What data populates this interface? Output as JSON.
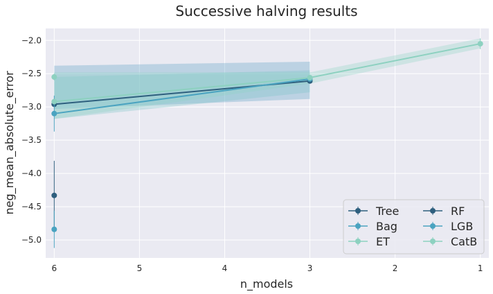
{
  "chart_data": {
    "type": "line",
    "title": "Successive halving results",
    "xlabel": "n_models",
    "ylabel": "neg_mean_absolute_error",
    "x_ticks": [
      6,
      5,
      4,
      3,
      2,
      1
    ],
    "x_tick_labels": [
      "6",
      "5",
      "4",
      "3",
      "2",
      "1"
    ],
    "x_reversed": true,
    "xlim": [
      6.1,
      0.9
    ],
    "y_ticks": [
      -5.0,
      -4.5,
      -4.0,
      -3.5,
      -3.0,
      -2.5,
      -2.0
    ],
    "y_tick_labels": [
      "−5.0",
      "−4.5",
      "−4.0",
      "−3.5",
      "−3.0",
      "−2.5",
      "−2.0"
    ],
    "ylim": [
      -5.27,
      -1.82
    ],
    "grid": true,
    "legend_position": "lower-right",
    "legend_columns": 2,
    "bands": [
      {
        "color": "#5a9fc5",
        "x": [
          6,
          3
        ],
        "upper": [
          -2.38,
          -2.32
        ],
        "lower": [
          -3.03,
          -2.88
        ]
      },
      {
        "color": "#7dc4c6",
        "x": [
          6,
          3
        ],
        "upper": [
          -2.55,
          -2.45
        ],
        "lower": [
          -3.18,
          -2.78
        ]
      },
      {
        "color": "#8fd3c4",
        "x": [
          6,
          3,
          1
        ],
        "upper": [
          -2.48,
          -2.48,
          -1.97
        ],
        "lower": [
          -3.18,
          -2.65,
          -2.12
        ]
      }
    ],
    "series": [
      {
        "name": "Tree",
        "color": "#2e5f7e",
        "x": [
          6
        ],
        "y": [
          -4.33
        ],
        "err": [
          0.52
        ]
      },
      {
        "name": "Bag",
        "color": "#4aa3c0",
        "x": [
          6
        ],
        "y": [
          -4.84
        ],
        "err": [
          0.28
        ]
      },
      {
        "name": "ET",
        "color": "#8dd1c0",
        "x": [
          6
        ],
        "y": [
          -2.55
        ],
        "err": [
          0.05
        ]
      },
      {
        "name": "RF",
        "color": "#2e5f7e",
        "x": [
          6,
          3
        ],
        "y": [
          -2.96,
          -2.61
        ],
        "err": [
          0.03,
          0.03
        ]
      },
      {
        "name": "LGB",
        "color": "#4aa3c0",
        "x": [
          6,
          3
        ],
        "y": [
          -3.1,
          -2.58
        ],
        "err": [
          0.27,
          0.03
        ]
      },
      {
        "name": "CatB",
        "color": "#8dd1c0",
        "x": [
          6,
          3,
          1
        ],
        "y": [
          -2.92,
          -2.56,
          -2.05
        ],
        "err": [
          0.04,
          0.03,
          0.08
        ]
      }
    ],
    "colors": {
      "background": "#eaeaf2",
      "grid": "#ffffff",
      "text": "#262626"
    }
  }
}
